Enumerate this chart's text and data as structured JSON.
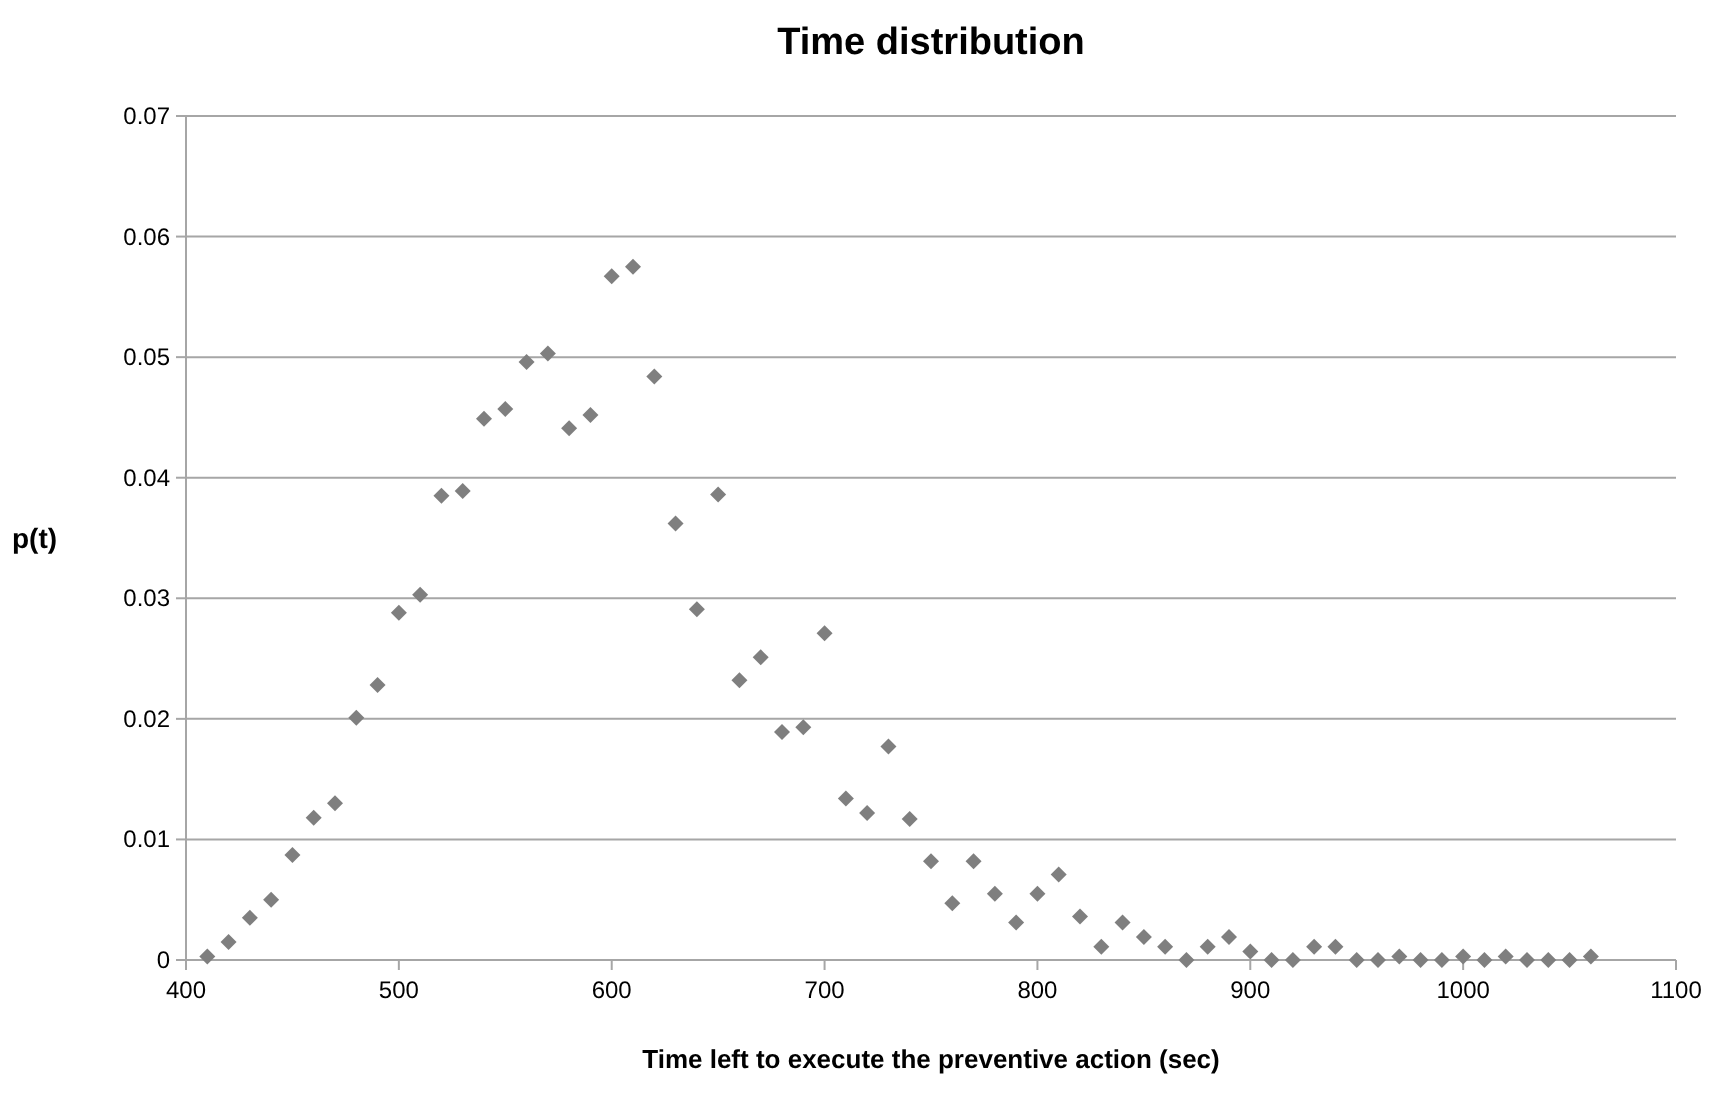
{
  "chart_data": {
    "type": "scatter",
    "title": "Time distribution",
    "xlabel": "Time left to execute the preventive action (sec)",
    "ylabel": "p(t)",
    "x": [
      410,
      420,
      430,
      440,
      450,
      460,
      470,
      480,
      490,
      500,
      510,
      520,
      530,
      540,
      550,
      560,
      570,
      580,
      590,
      600,
      610,
      620,
      630,
      640,
      650,
      660,
      670,
      680,
      690,
      700,
      710,
      720,
      730,
      740,
      750,
      760,
      770,
      780,
      790,
      800,
      810,
      820,
      830,
      840,
      850,
      860,
      870,
      880,
      890,
      900,
      910,
      920,
      930,
      940,
      950,
      960,
      970,
      980,
      990,
      1000,
      1010,
      1020,
      1030,
      1040,
      1050,
      1060
    ],
    "series": [
      {
        "color": "#7f7f7f",
        "values": [
          0.0003,
          0.0015,
          0.0035,
          0.005,
          0.0087,
          0.0118,
          0.013,
          0.0201,
          0.0228,
          0.0288,
          0.0303,
          0.0385,
          0.0389,
          0.0449,
          0.0457,
          0.0496,
          0.0503,
          0.0441,
          0.0452,
          0.0567,
          0.0575,
          0.0484,
          0.0362,
          0.0291,
          0.0386,
          0.0232,
          0.0251,
          0.0189,
          0.0193,
          0.0271,
          0.0134,
          0.0122,
          0.0177,
          0.0117,
          0.0082,
          0.0047,
          0.0082,
          0.0055,
          0.0031,
          0.0055,
          0.0071,
          0.0036,
          0.0011,
          0.0031,
          0.0019,
          0.0011,
          0,
          0.0011,
          0.0019,
          0.0007,
          0,
          0,
          0.0011,
          0.0011,
          0,
          0,
          0.0003,
          0,
          0,
          0.0003,
          0,
          0.0003,
          0,
          0,
          0,
          0.0003
        ]
      }
    ],
    "xlim": [
      400,
      1100
    ],
    "xticks": [
      400,
      500,
      600,
      700,
      800,
      900,
      1000,
      1100
    ],
    "ylim": [
      0,
      0.07
    ],
    "yticks": [
      0,
      0.01,
      0.02,
      0.03,
      0.04,
      0.05,
      0.06,
      0.07
    ],
    "grid": "y",
    "marker": "diamond"
  }
}
